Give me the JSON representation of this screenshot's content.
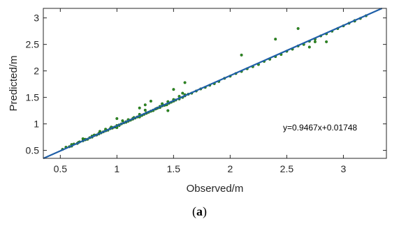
{
  "chart_data": {
    "type": "scatter",
    "title": "",
    "xlabel": "Observed/m",
    "ylabel": "Predicted/m",
    "xlim": [
      0.35,
      3.38
    ],
    "ylim": [
      0.35,
      3.18
    ],
    "xticks": [
      "0.5",
      "1",
      "1.5",
      "2",
      "2.5",
      "3"
    ],
    "xtick_values": [
      0.5,
      1,
      1.5,
      2,
      2.5,
      3
    ],
    "yticks": [
      "0.5",
      "1",
      "1.5",
      "2",
      "2.5",
      "3"
    ],
    "ytick_values": [
      0.5,
      1,
      1.5,
      2,
      2.5,
      3
    ],
    "grid": false,
    "fit_line": {
      "slope": 0.9467,
      "intercept": 0.01748,
      "label": "y=0.9467x+0.01748"
    },
    "colors": {
      "points": "#2e8b22",
      "point_edge": "#1a5e12",
      "line": "#1f5fa8",
      "axis": "#262626"
    },
    "x": [
      0.52,
      0.55,
      0.58,
      0.6,
      0.62,
      0.65,
      0.67,
      0.7,
      0.72,
      0.74,
      0.76,
      0.78,
      0.8,
      0.82,
      0.84,
      0.86,
      0.88,
      0.9,
      0.92,
      0.94,
      0.96,
      0.98,
      1.0,
      1.02,
      1.04,
      1.06,
      1.08,
      1.1,
      1.12,
      1.14,
      1.16,
      1.18,
      1.2,
      1.22,
      1.24,
      1.26,
      1.28,
      1.3,
      1.32,
      1.34,
      1.36,
      1.38,
      1.4,
      1.42,
      1.44,
      1.46,
      1.48,
      1.5,
      1.52,
      1.55,
      1.58,
      1.6,
      1.63,
      1.66,
      1.7,
      1.74,
      1.78,
      1.82,
      1.86,
      1.9,
      1.95,
      2.0,
      2.05,
      2.1,
      2.15,
      2.2,
      2.25,
      2.3,
      2.35,
      2.4,
      2.45,
      2.5,
      2.55,
      2.6,
      2.65,
      2.7,
      2.75,
      2.8,
      2.85,
      2.9,
      2.95,
      3.0,
      3.05,
      3.1,
      3.15,
      3.2,
      0.6,
      0.66,
      0.72,
      0.78,
      0.84,
      0.9,
      0.96,
      1.02,
      1.08,
      1.14,
      1.2,
      1.26,
      1.32,
      1.38,
      1.44,
      1.5,
      0.7,
      0.8,
      0.9,
      1.0,
      1.1,
      1.2,
      1.3,
      1.4,
      1.5,
      1.6,
      0.85,
      0.95,
      1.05,
      1.15,
      1.25,
      1.35,
      1.45,
      1.55,
      1.25,
      1.3,
      1.5,
      1.58,
      2.1,
      2.6,
      2.7,
      2.75,
      3.1,
      1.45,
      1.6,
      2.4,
      2.85,
      1.0,
      1.2
    ],
    "y": [
      0.52,
      0.56,
      0.57,
      0.58,
      0.62,
      0.63,
      0.66,
      0.68,
      0.7,
      0.71,
      0.74,
      0.75,
      0.78,
      0.79,
      0.82,
      0.83,
      0.85,
      0.87,
      0.88,
      0.91,
      0.92,
      0.94,
      0.97,
      0.98,
      1.0,
      1.02,
      1.04,
      1.05,
      1.07,
      1.09,
      1.11,
      1.13,
      1.15,
      1.16,
      1.18,
      1.2,
      1.22,
      1.24,
      1.26,
      1.28,
      1.3,
      1.31,
      1.34,
      1.35,
      1.37,
      1.39,
      1.41,
      1.43,
      1.45,
      1.47,
      1.5,
      1.53,
      1.56,
      1.58,
      1.62,
      1.66,
      1.69,
      1.73,
      1.76,
      1.8,
      1.86,
      1.9,
      1.95,
      1.99,
      2.04,
      2.08,
      2.12,
      2.18,
      2.22,
      2.27,
      2.31,
      2.37,
      2.41,
      2.47,
      2.5,
      2.56,
      2.6,
      2.66,
      2.7,
      2.75,
      2.8,
      2.85,
      2.9,
      2.94,
      2.99,
      3.04,
      0.61,
      0.65,
      0.71,
      0.77,
      0.81,
      0.87,
      0.93,
      0.97,
      1.03,
      1.1,
      1.13,
      1.21,
      1.25,
      1.33,
      1.36,
      1.44,
      0.72,
      0.79,
      0.9,
      0.93,
      1.08,
      1.18,
      1.24,
      1.38,
      1.46,
      1.55,
      0.86,
      0.94,
      1.06,
      1.12,
      1.26,
      1.29,
      1.42,
      1.52,
      1.36,
      1.43,
      1.65,
      1.58,
      2.3,
      2.8,
      2.45,
      2.55,
      2.95,
      1.25,
      1.78,
      2.6,
      2.55,
      1.1,
      1.3
    ]
  },
  "caption": {
    "open": "(",
    "label": "a",
    "close": ")"
  }
}
